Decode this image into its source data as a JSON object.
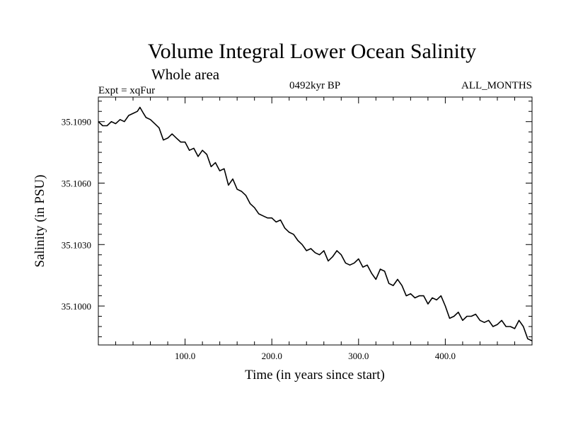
{
  "chart_data": {
    "type": "line",
    "title": "Volume Integral Lower Ocean Salinity",
    "subtitle": "Whole area",
    "experiment": "Expt = xqFur",
    "period": "0492kyr BP",
    "months": "ALL_MONTHS",
    "xlabel": "Time (in years since start)",
    "ylabel": "Salinity (in PSU)",
    "xlim": [
      0,
      500
    ],
    "ylim": [
      35.0981,
      35.1102
    ],
    "xticks": [
      {
        "value": 100,
        "label": "100.0"
      },
      {
        "value": 200,
        "label": "200.0"
      },
      {
        "value": 300,
        "label": "300.0"
      },
      {
        "value": 400,
        "label": "400.0"
      }
    ],
    "yticks": [
      {
        "value": 35.1,
        "label": "35.1000"
      },
      {
        "value": 35.103,
        "label": "35.1030"
      },
      {
        "value": 35.106,
        "label": "35.1060"
      },
      {
        "value": 35.109,
        "label": "35.1090"
      }
    ],
    "grid": false,
    "series": [
      {
        "name": "salinity",
        "x": [
          0,
          5,
          10,
          15,
          20,
          25,
          30,
          35,
          40,
          45,
          48,
          52,
          55,
          60,
          65,
          70,
          75,
          80,
          85,
          90,
          95,
          100,
          105,
          110,
          115,
          120,
          125,
          130,
          135,
          140,
          145,
          150,
          155,
          160,
          165,
          170,
          175,
          180,
          185,
          190,
          195,
          200,
          205,
          210,
          215,
          220,
          225,
          230,
          235,
          240,
          245,
          250,
          255,
          260,
          265,
          270,
          275,
          280,
          285,
          290,
          295,
          300,
          305,
          310,
          315,
          320,
          325,
          330,
          335,
          340,
          345,
          350,
          355,
          360,
          365,
          370,
          375,
          380,
          385,
          390,
          395,
          400,
          405,
          410,
          415,
          420,
          425,
          430,
          435,
          440,
          445,
          450,
          455,
          460,
          465,
          470,
          475,
          480,
          485,
          490,
          495,
          500
        ],
        "values": [
          35.109,
          35.1088,
          35.1088,
          35.109,
          35.1089,
          35.1091,
          35.109,
          35.1093,
          35.1094,
          35.1095,
          35.1097,
          35.1094,
          35.1092,
          35.1091,
          35.1089,
          35.1087,
          35.1081,
          35.1082,
          35.1084,
          35.1082,
          35.108,
          35.108,
          35.1076,
          35.1077,
          35.1073,
          35.1076,
          35.1074,
          35.1068,
          35.107,
          35.1066,
          35.1067,
          35.1059,
          35.1062,
          35.1057,
          35.1056,
          35.1054,
          35.105,
          35.1048,
          35.1045,
          35.1044,
          35.1043,
          35.1043,
          35.1041,
          35.1042,
          35.1038,
          35.1036,
          35.1035,
          35.1032,
          35.103,
          35.1027,
          35.1028,
          35.1026,
          35.1025,
          35.1027,
          35.1022,
          35.1024,
          35.1027,
          35.1025,
          35.1021,
          35.102,
          35.1021,
          35.1023,
          35.1019,
          35.102,
          35.1016,
          35.1013,
          35.1018,
          35.1017,
          35.1011,
          35.101,
          35.1013,
          35.101,
          35.1005,
          35.1006,
          35.1004,
          35.1005,
          35.1005,
          35.1001,
          35.1004,
          35.1003,
          35.1005,
          35.1,
          35.0994,
          35.0995,
          35.0997,
          35.0993,
          35.0995,
          35.0995,
          35.0996,
          35.0993,
          35.0992,
          35.0993,
          35.099,
          35.0991,
          35.0993,
          35.099,
          35.099,
          35.0989,
          35.0993,
          35.099,
          35.0984,
          35.0983
        ]
      }
    ]
  },
  "colors": {
    "line": "#000000",
    "frame": "#000000",
    "background": "#ffffff"
  }
}
